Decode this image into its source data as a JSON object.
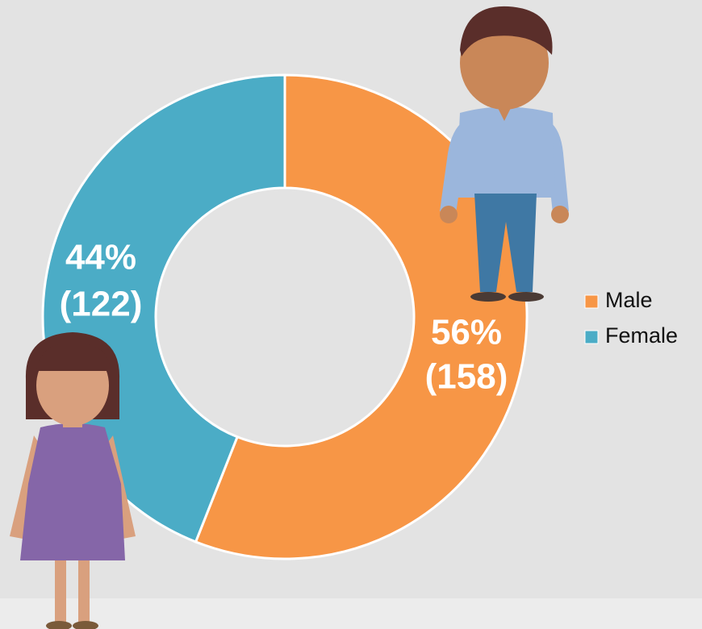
{
  "chart_data": {
    "type": "donut",
    "categories": [
      "Male",
      "Female"
    ],
    "values": [
      56,
      44
    ],
    "value_labels": [
      "56%",
      "44%"
    ],
    "counts": [
      158,
      122
    ],
    "count_labels": [
      "(158)",
      "(122)"
    ],
    "colors": [
      "#f79646",
      "#4bacc6"
    ],
    "start_angle": 0,
    "legend": "right"
  }
}
